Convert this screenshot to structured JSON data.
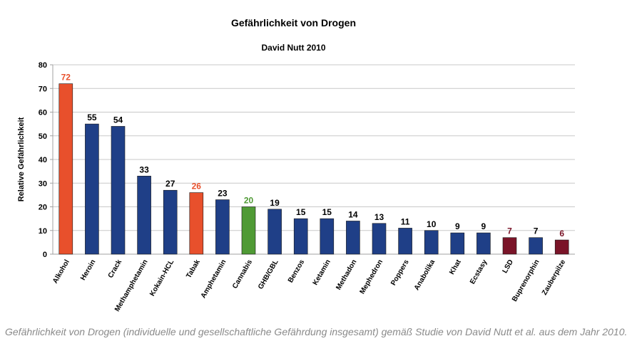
{
  "chart_data": {
    "type": "bar",
    "title": "Gefährlichkeit von Drogen",
    "subtitle": "David Nutt 2010",
    "ylabel": "Relative Gefährlichkeit",
    "xlabel": "",
    "ylim": [
      0,
      80
    ],
    "yticks": [
      0,
      10,
      20,
      30,
      40,
      50,
      60,
      70,
      80
    ],
    "grid": true,
    "legend": "none",
    "categories": [
      "Alkohol",
      "Heroin",
      "Crack",
      "Methamphetamin",
      "Kokain-HCL",
      "Tabak",
      "Amphetamin",
      "Cannabis",
      "GHB/GBL",
      "Benzos",
      "Ketamin",
      "Methadon",
      "Mephedron",
      "Poppers",
      "Anabolika",
      "Khat",
      "Ecstasy",
      "LSD",
      "Buprenorphin",
      "Zauberpilze"
    ],
    "values": [
      72,
      55,
      54,
      33,
      27,
      26,
      23,
      20,
      19,
      15,
      15,
      14,
      13,
      11,
      10,
      9,
      9,
      7,
      7,
      6
    ],
    "bar_colors": [
      "#e8502c",
      "#1f3f87",
      "#1f3f87",
      "#1f3f87",
      "#1f3f87",
      "#e8502c",
      "#1f3f87",
      "#4f9a35",
      "#1f3f87",
      "#1f3f87",
      "#1f3f87",
      "#1f3f87",
      "#1f3f87",
      "#1f3f87",
      "#1f3f87",
      "#1f3f87",
      "#1f3f87",
      "#7a1428",
      "#1f3f87",
      "#7a1428"
    ],
    "label_colors": [
      "#e8502c",
      "#000000",
      "#000000",
      "#000000",
      "#000000",
      "#e8502c",
      "#000000",
      "#4f9a35",
      "#000000",
      "#000000",
      "#000000",
      "#000000",
      "#000000",
      "#000000",
      "#000000",
      "#000000",
      "#000000",
      "#7a1428",
      "#000000",
      "#7a1428"
    ]
  },
  "caption": "Gefährlichkeit von Drogen (individuelle und gesellschaftliche Gefährdung insgesamt) gemäß Studie von David Nutt et al. aus dem Jahr 2010."
}
